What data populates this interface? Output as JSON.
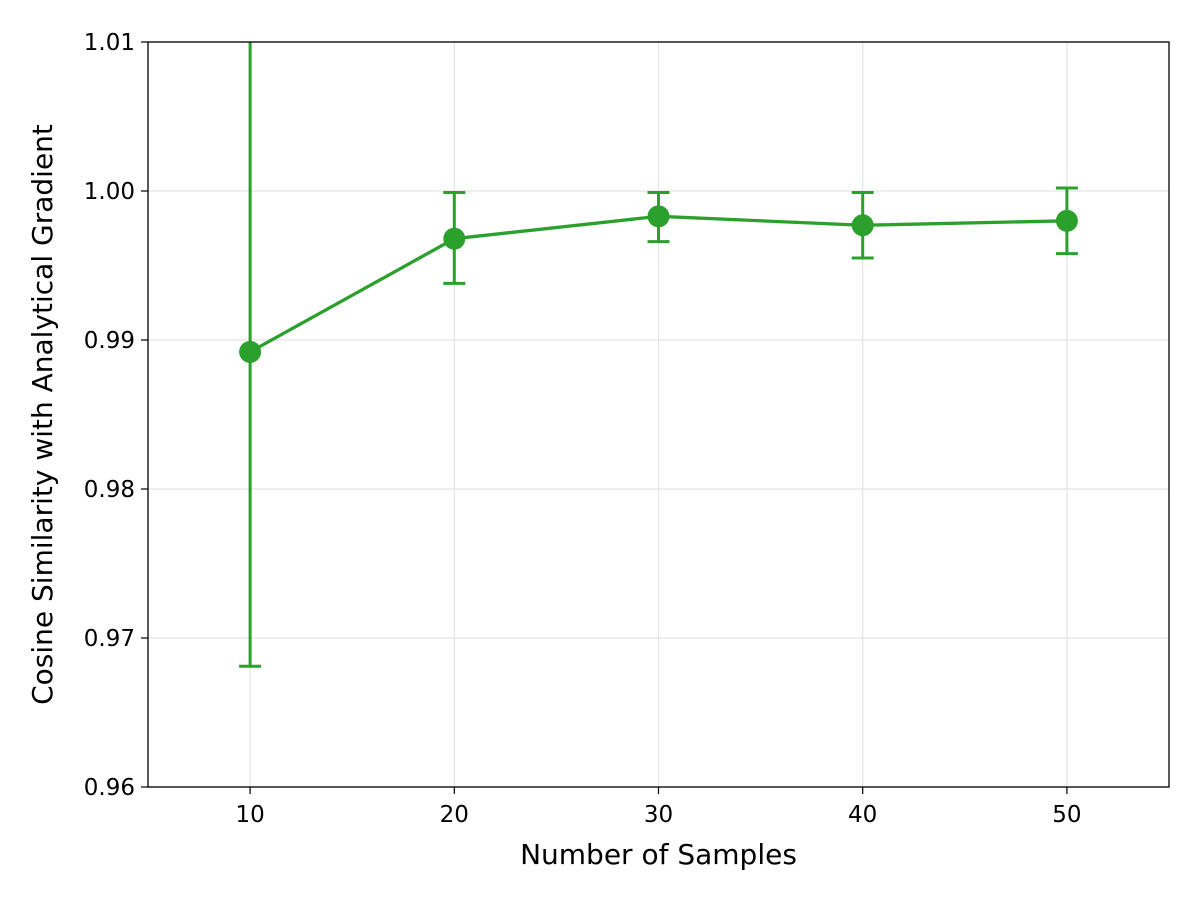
{
  "chart_data": {
    "type": "line",
    "title": "",
    "xlabel": "Number of Samples",
    "ylabel": "Cosine Similarity with Analytical Gradient",
    "xlim": [
      5,
      55
    ],
    "ylim": [
      0.96,
      1.01
    ],
    "xticks": [
      10,
      20,
      30,
      40,
      50
    ],
    "xtick_labels": [
      "10",
      "20",
      "30",
      "40",
      "50"
    ],
    "yticks": [
      0.96,
      0.97,
      0.98,
      0.99,
      1.0,
      1.01
    ],
    "ytick_labels": [
      "0.96",
      "0.97",
      "0.98",
      "0.99",
      "1.00",
      "1.01"
    ],
    "grid": true,
    "color": "#2ca02c",
    "series": [
      {
        "x": [
          10,
          20,
          30,
          40,
          50
        ],
        "y": [
          0.9892,
          0.9968,
          0.9983,
          0.9977,
          0.998
        ],
        "error_lower": [
          0.9681,
          0.9938,
          0.9966,
          0.9955,
          0.9958
        ],
        "error_upper": [
          1.0103,
          0.9999,
          0.9999,
          0.9999,
          1.0002
        ]
      }
    ]
  }
}
